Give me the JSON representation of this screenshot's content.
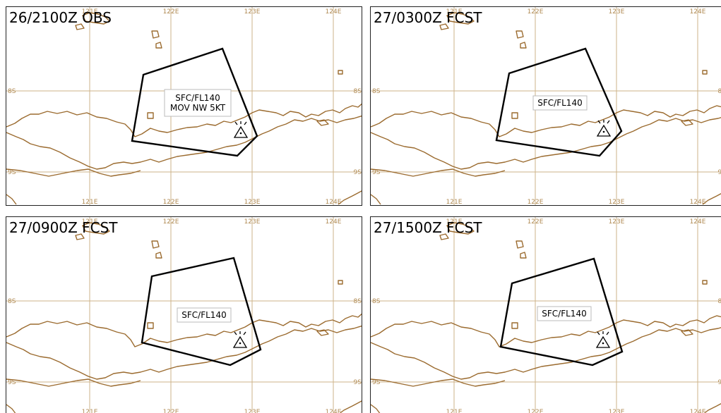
{
  "panels": [
    {
      "title": "26/2100Z OBS",
      "label_lines": [
        "SFC/FL140",
        "MOV NW 5KT"
      ]
    },
    {
      "title": "27/0300Z FCST",
      "label_lines": [
        "SFC/FL140"
      ]
    },
    {
      "title": "27/0900Z FCST",
      "label_lines": [
        "SFC/FL140"
      ]
    },
    {
      "title": "27/1500Z FCST",
      "label_lines": [
        "SFC/FL140"
      ]
    }
  ],
  "grid": {
    "lon_labels": [
      "121E",
      "122E",
      "123E",
      "124E"
    ],
    "lat_labels": [
      "8S",
      "9S"
    ]
  },
  "colors": {
    "coastline": "#9b6b2f",
    "gridline": "#cdb38a",
    "polygon": "#000000"
  },
  "icons": {
    "volcano": "volcano-icon"
  }
}
